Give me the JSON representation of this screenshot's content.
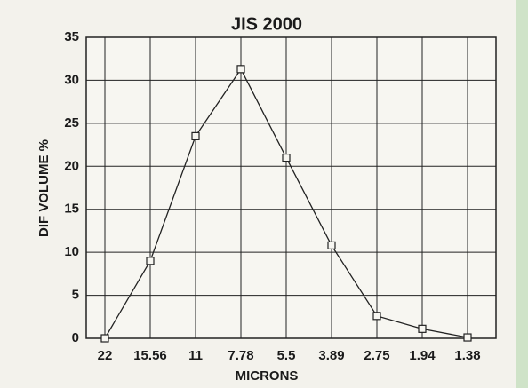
{
  "chart_data": {
    "type": "line",
    "title": "JIS 2000",
    "x_label": "MICRONS",
    "y_label": "DIF VOLUME %",
    "categories": [
      "22",
      "15.56",
      "11",
      "7.78",
      "5.5",
      "3.89",
      "2.75",
      "1.94",
      "1.38"
    ],
    "values": [
      0,
      9,
      23.5,
      31.3,
      21,
      10.8,
      2.6,
      1.1,
      0.1
    ],
    "color": "#222222",
    "marker": "square",
    "ylim": [
      0,
      35
    ],
    "yticks": [
      0,
      5,
      10,
      15,
      20,
      25,
      30,
      35
    ],
    "grid": true
  }
}
